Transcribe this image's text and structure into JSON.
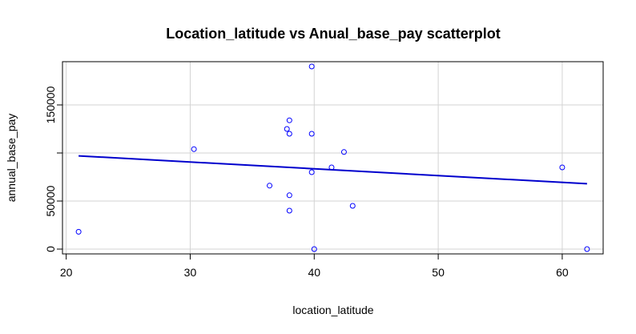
{
  "chart_data": {
    "type": "scatter",
    "title": "Location_latitude vs Anual_base_pay scatterplot",
    "xlabel": "location_latitude",
    "ylabel": "annual_base_pay",
    "xlim": [
      19.7,
      63.3
    ],
    "ylim": [
      -5000,
      195000
    ],
    "xticks": [
      20,
      30,
      40,
      50,
      60
    ],
    "yticks": [
      0,
      50000,
      150000
    ],
    "grid": true,
    "point_color": "#0000ff",
    "line_color": "#0000cd",
    "points": [
      {
        "x": 21.0,
        "y": 18000
      },
      {
        "x": 30.3,
        "y": 104000
      },
      {
        "x": 36.4,
        "y": 66000
      },
      {
        "x": 37.8,
        "y": 125000
      },
      {
        "x": 38.0,
        "y": 134000
      },
      {
        "x": 38.0,
        "y": 120000
      },
      {
        "x": 38.0,
        "y": 56000
      },
      {
        "x": 38.0,
        "y": 40000
      },
      {
        "x": 39.8,
        "y": 190000
      },
      {
        "x": 39.8,
        "y": 120000
      },
      {
        "x": 39.8,
        "y": 80000
      },
      {
        "x": 40.0,
        "y": 0
      },
      {
        "x": 41.4,
        "y": 85000
      },
      {
        "x": 42.4,
        "y": 101000
      },
      {
        "x": 43.1,
        "y": 45000
      },
      {
        "x": 60.0,
        "y": 85000
      },
      {
        "x": 62.0,
        "y": 0
      }
    ],
    "trend_line": {
      "x": [
        21.0,
        62.0
      ],
      "y": [
        97000,
        68000
      ]
    }
  }
}
